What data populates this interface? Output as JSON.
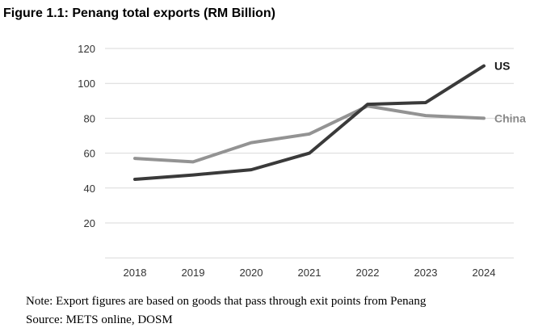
{
  "title": "Figure 1.1: Penang total exports (RM Billion)",
  "note": "Note: Export figures are based on goods that pass through exit points from Penang",
  "source": "Source: METS online, DOSM",
  "chart_data": {
    "type": "line",
    "x": [
      "2018",
      "2019",
      "2020",
      "2021",
      "2022",
      "2023",
      "2024"
    ],
    "series": [
      {
        "name": "US",
        "values": [
          45,
          47.5,
          50.5,
          60,
          88,
          89,
          110
        ],
        "color": "#3a3a3a",
        "label_color": "#1a1a1a"
      },
      {
        "name": "China",
        "values": [
          57,
          55,
          66,
          71,
          87,
          81.5,
          80
        ],
        "color": "#939393",
        "label_color": "#8a8a8a"
      }
    ],
    "yticks": [
      20,
      40,
      60,
      80,
      100,
      120
    ],
    "ylim": [
      0,
      120
    ],
    "grid": true,
    "legend": "inline end labels"
  }
}
